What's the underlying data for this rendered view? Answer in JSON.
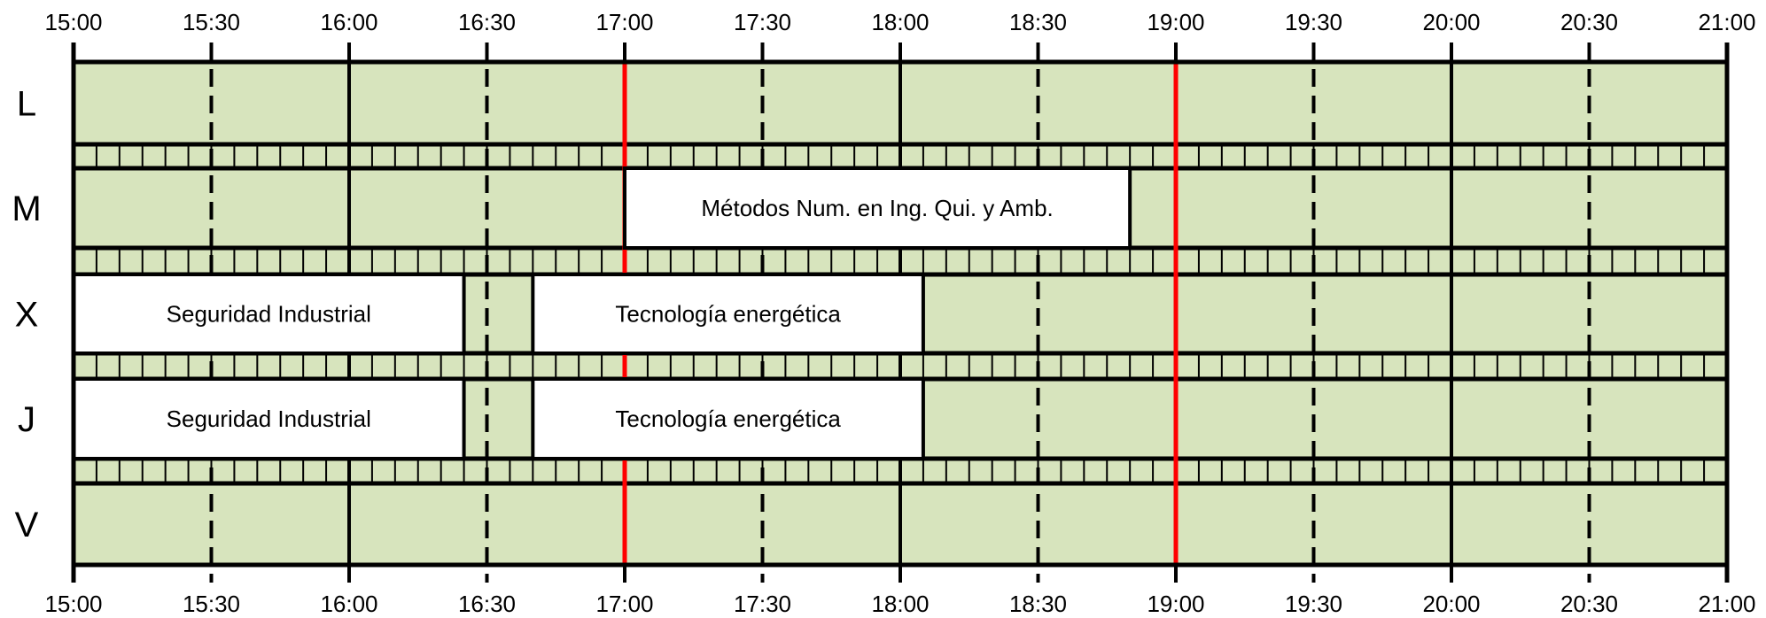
{
  "timeline": {
    "start": "15:00",
    "end": "21:00",
    "tick_labels": [
      "15:00",
      "15:30",
      "16:00",
      "16:30",
      "17:00",
      "17:30",
      "18:00",
      "18:30",
      "19:00",
      "19:30",
      "20:00",
      "20:30",
      "21:00"
    ]
  },
  "days": [
    {
      "label": "L",
      "classes": []
    },
    {
      "label": "M",
      "classes": [
        {
          "name": "Métodos Num. en Ing. Qui. y Amb.",
          "start": "17:00",
          "end": "18:50"
        }
      ]
    },
    {
      "label": "X",
      "classes": [
        {
          "name": "Seguridad Industrial",
          "start": "15:00",
          "end": "16:25"
        },
        {
          "name": "Tecnología energética",
          "start": "16:40",
          "end": "18:05"
        }
      ]
    },
    {
      "label": "J",
      "classes": [
        {
          "name": "Seguridad Industrial",
          "start": "15:00",
          "end": "16:25"
        },
        {
          "name": "Tecnología energética",
          "start": "16:40",
          "end": "18:05"
        }
      ]
    },
    {
      "label": "V",
      "classes": []
    }
  ],
  "highlight_times": [
    "17:00",
    "19:00"
  ],
  "colors": {
    "free_slot": "#d7e4bd",
    "class_block": "#ffffff",
    "grid": "#000000",
    "highlight": "#ff0000"
  }
}
